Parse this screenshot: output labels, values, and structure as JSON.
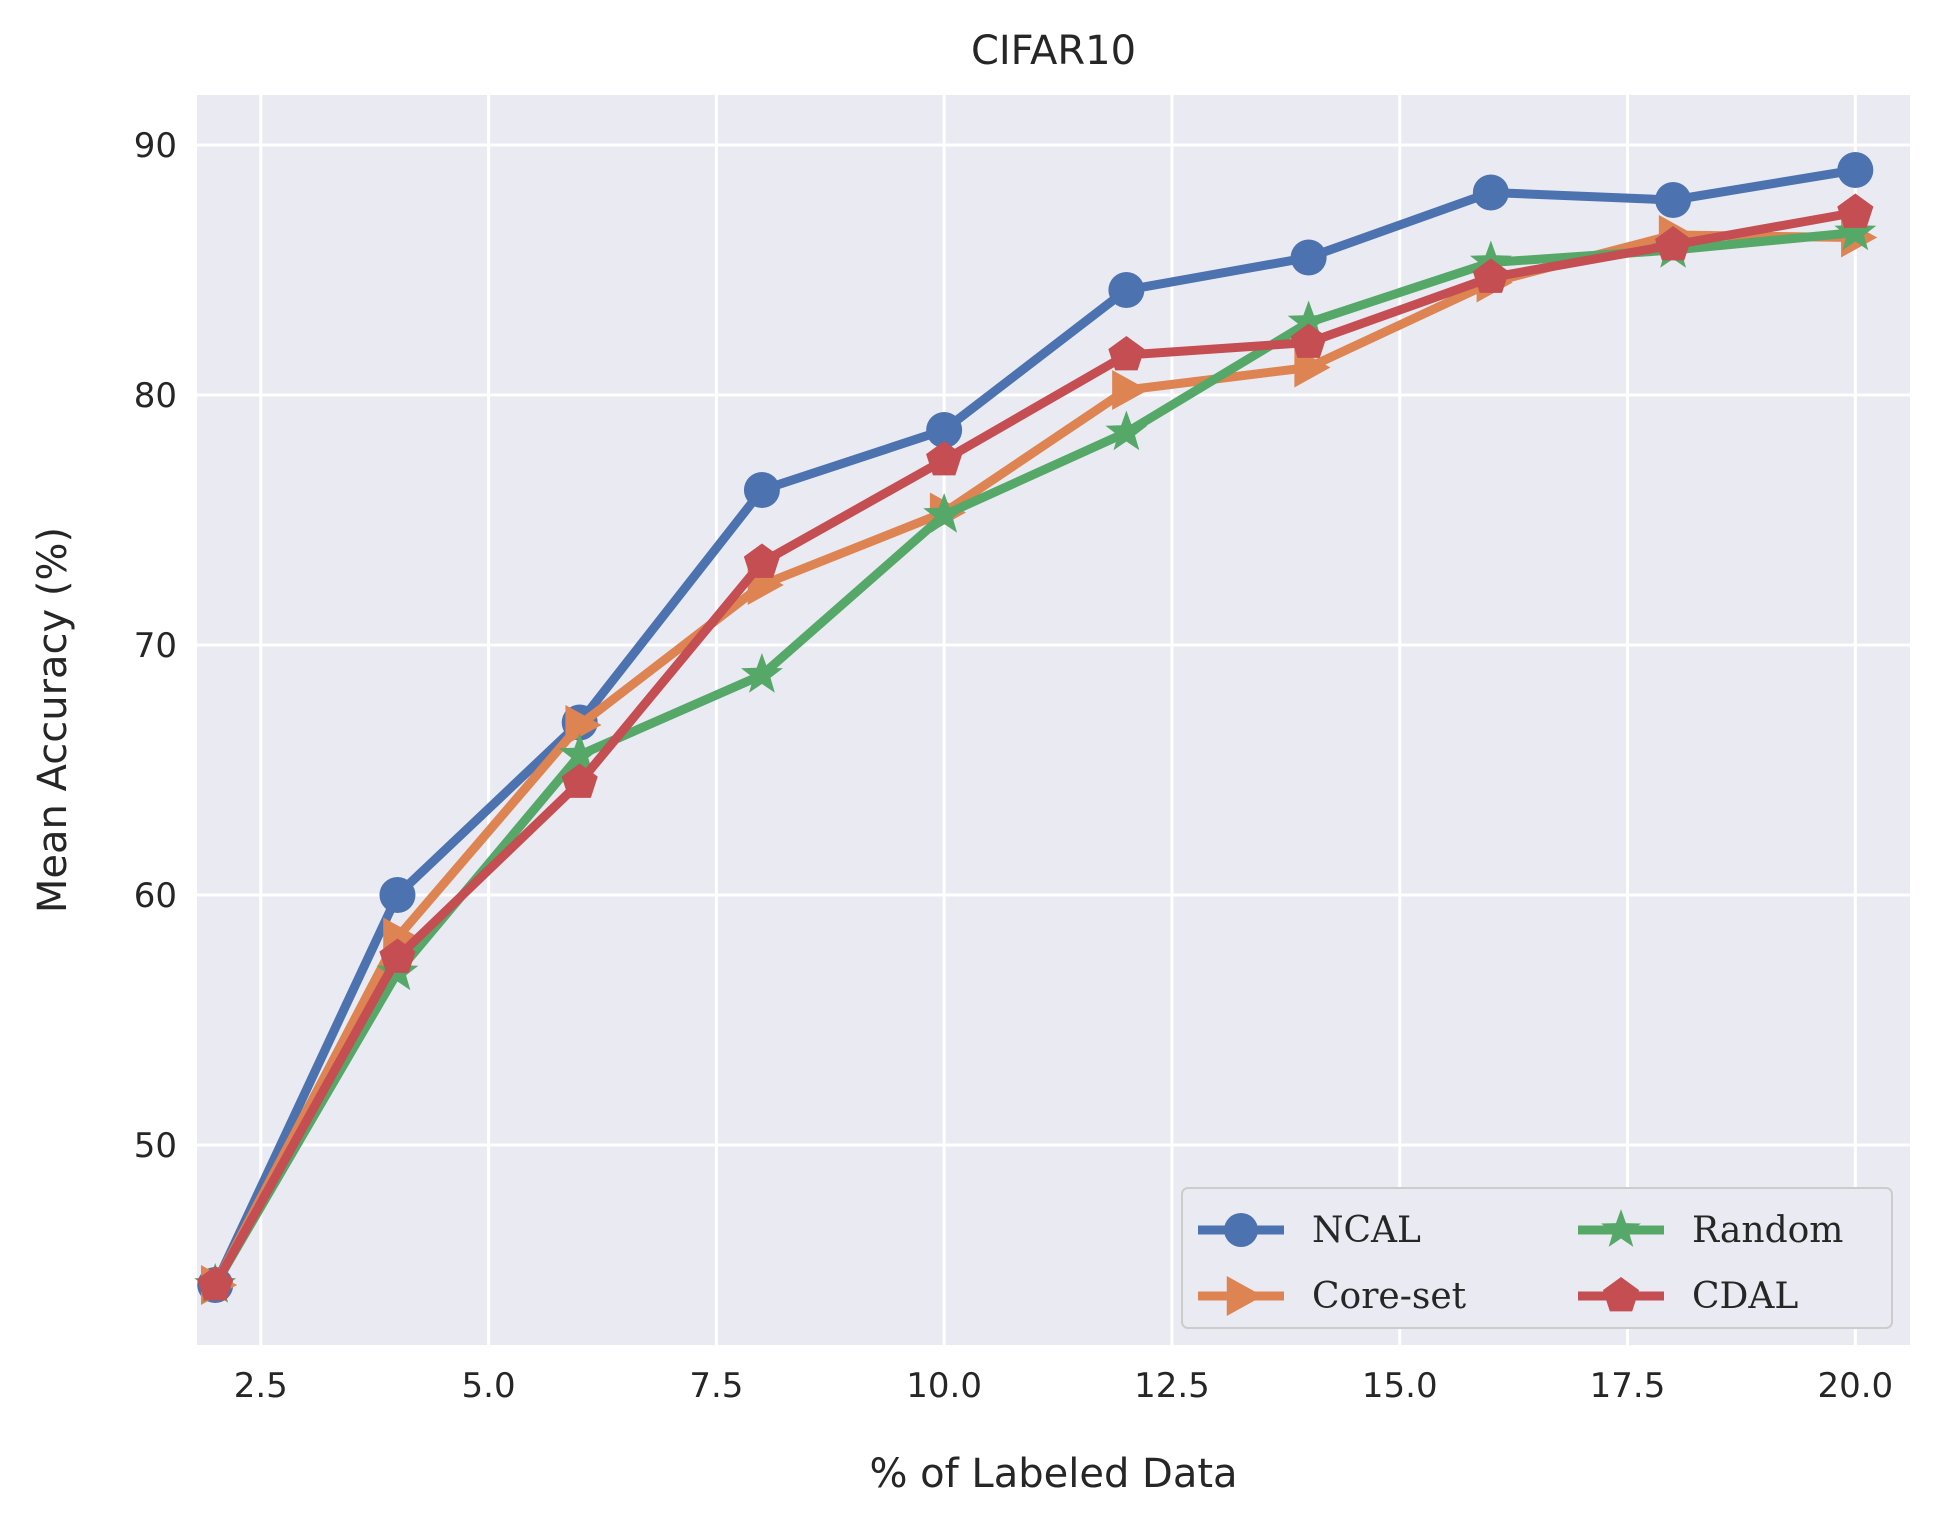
{
  "chart_data": {
    "type": "line",
    "title": "CIFAR10",
    "xlabel": "% of Labeled Data",
    "ylabel": "Mean Accuracy (%)",
    "xlim": [
      1.8,
      20.6
    ],
    "ylim": [
      42,
      92
    ],
    "xticks": [
      2.5,
      5.0,
      7.5,
      10.0,
      12.5,
      15.0,
      17.5,
      20.0
    ],
    "xtick_labels": [
      "2.5",
      "5.0",
      "7.5",
      "10.0",
      "12.5",
      "15.0",
      "17.5",
      "20.0"
    ],
    "yticks": [
      50,
      60,
      70,
      80,
      90
    ],
    "ytick_labels": [
      "50",
      "60",
      "70",
      "80",
      "90"
    ],
    "grid": true,
    "legend_position": "bottom-right",
    "legend_columns": 2,
    "x": [
      2,
      4,
      6,
      8,
      10,
      12,
      14,
      16,
      18,
      20
    ],
    "series": [
      {
        "name": "NCAL",
        "color": "#4c72b0",
        "marker": "circle",
        "values": [
          44.4,
          60.0,
          66.9,
          76.2,
          78.6,
          84.2,
          85.5,
          88.1,
          87.8,
          89.0
        ]
      },
      {
        "name": "Core-set",
        "color": "#dd8452",
        "marker": "triangle-right",
        "values": [
          44.4,
          58.3,
          66.8,
          72.4,
          75.3,
          80.2,
          81.1,
          84.5,
          86.4,
          86.3
        ]
      },
      {
        "name": "Random",
        "color": "#55a868",
        "marker": "star",
        "values": [
          44.4,
          56.9,
          65.6,
          68.8,
          75.2,
          78.5,
          82.9,
          85.3,
          85.8,
          86.5
        ]
      },
      {
        "name": "CDAL",
        "color": "#c44e52",
        "marker": "pentagon",
        "values": [
          44.4,
          57.5,
          64.5,
          73.3,
          77.4,
          81.6,
          82.1,
          84.7,
          86.0,
          87.3
        ]
      }
    ]
  }
}
